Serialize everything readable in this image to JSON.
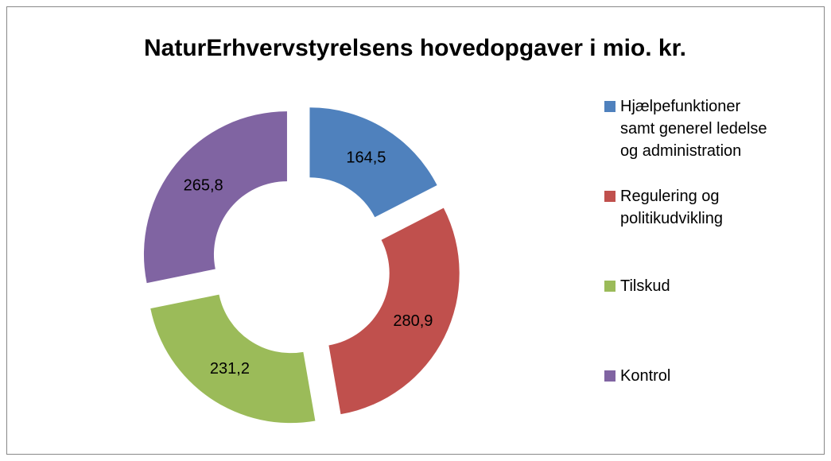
{
  "chart_data": {
    "type": "donut",
    "title": "NaturErhvervstyrelsens hovedopgaver i mio. kr.",
    "categories": [
      "Hjælpefunktioner samt generel ledelse og administration",
      "Regulering og politikudvikling",
      "Tilskud",
      "Kontrol"
    ],
    "values": [
      164.5,
      280.9,
      231.2,
      265.8
    ],
    "value_labels": [
      "164,5",
      "280,9",
      "231,2",
      "265,8"
    ],
    "colors": [
      "#4f81bd",
      "#c0504d",
      "#9bbb59",
      "#8064a2"
    ],
    "legend": "right"
  }
}
